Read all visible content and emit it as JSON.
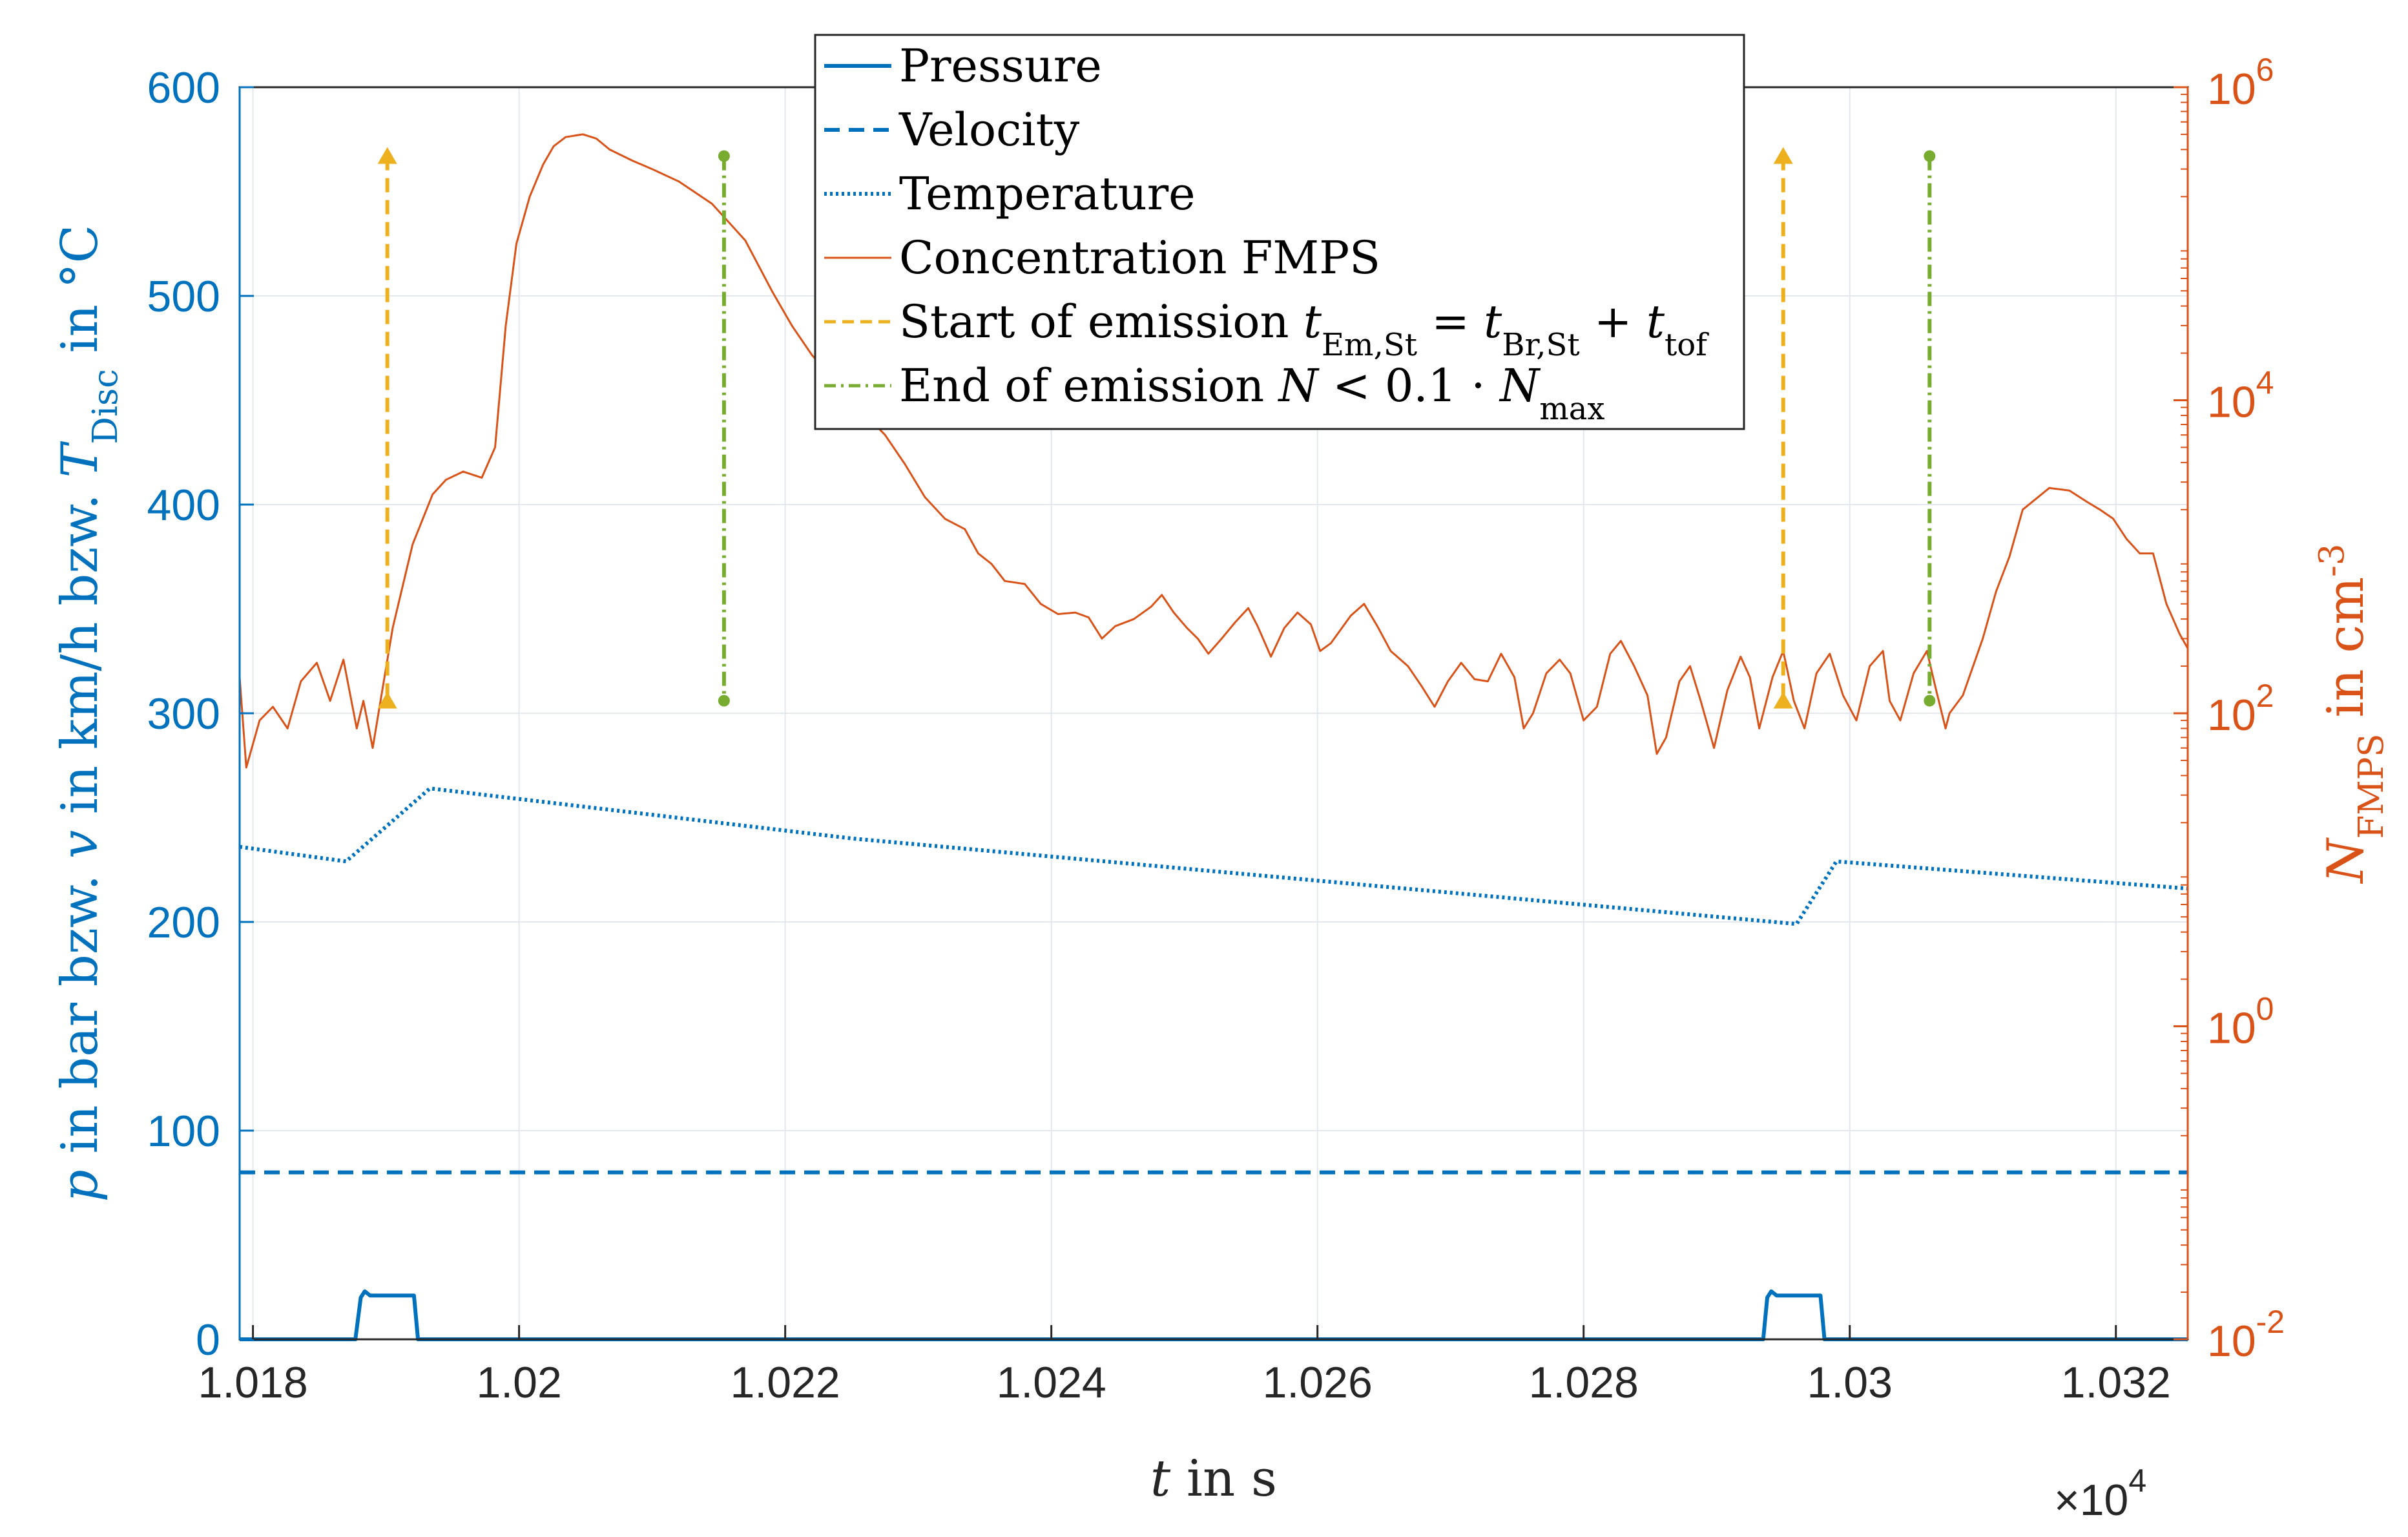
{
  "colors": {
    "left_axis": "#0072BD",
    "right_axis": "#D95319",
    "start_marker": "#EDB120",
    "end_marker": "#77AC30",
    "grid": "#E2E8EE",
    "text": "#262626"
  },
  "chart_data": {
    "type": "line",
    "x_scale_label": "×10",
    "x_scale_exponent": "4",
    "xlim": [
      1.0179,
      1.03254
    ],
    "x_ticks": [
      {
        "value": 1.018,
        "label": "1.018"
      },
      {
        "value": 1.02,
        "label": "1.02"
      },
      {
        "value": 1.022,
        "label": "1.022"
      },
      {
        "value": 1.024,
        "label": "1.024"
      },
      {
        "value": 1.026,
        "label": "1.026"
      },
      {
        "value": 1.028,
        "label": "1.028"
      },
      {
        "value": 1.03,
        "label": "1.03"
      },
      {
        "value": 1.032,
        "label": "1.032"
      }
    ],
    "xlabel": {
      "var": "t",
      "rest": " in s"
    },
    "left_axis": {
      "ylim": [
        0,
        600
      ],
      "ticks": [
        0,
        100,
        200,
        300,
        400,
        500,
        600
      ],
      "label_parts": [
        {
          "t": "p",
          "style": "italic"
        },
        {
          "t": " in bar bzw. "
        },
        {
          "t": "v",
          "style": "italic"
        },
        {
          "t": " in km/h bzw. "
        },
        {
          "t": "T",
          "style": "italic"
        },
        {
          "t": "Disc",
          "sub": true
        },
        {
          "t": " in °C"
        }
      ]
    },
    "right_axis": {
      "scale": "log",
      "ylim_exponent": [
        -2,
        6
      ],
      "ticks": [
        {
          "base": "10",
          "exp": "-2",
          "value_exp": -2
        },
        {
          "base": "10",
          "exp": "0",
          "value_exp": 0
        },
        {
          "base": "10",
          "exp": "2",
          "value_exp": 2
        },
        {
          "base": "10",
          "exp": "4",
          "value_exp": 4
        },
        {
          "base": "10",
          "exp": "6",
          "value_exp": 6
        }
      ],
      "label_parts": [
        {
          "t": "N",
          "style": "italic"
        },
        {
          "t": "FMPS",
          "sub": true
        },
        {
          "t": " in cm"
        },
        {
          "t": "-3",
          "sup": true
        }
      ]
    },
    "legend": [
      {
        "key": "pressure",
        "parts": [
          {
            "t": "Pressure"
          }
        ]
      },
      {
        "key": "velocity",
        "parts": [
          {
            "t": "Velocity"
          }
        ]
      },
      {
        "key": "temperature",
        "parts": [
          {
            "t": "Temperature"
          }
        ]
      },
      {
        "key": "concentration",
        "parts": [
          {
            "t": "Concentration FMPS"
          }
        ]
      },
      {
        "key": "start",
        "parts": [
          {
            "t": "Start of emission "
          },
          {
            "t": "t",
            "style": "italic"
          },
          {
            "t": "Em,St",
            "sub": true
          },
          {
            "t": " = "
          },
          {
            "t": "t",
            "style": "italic"
          },
          {
            "t": "Br,St",
            "sub": true
          },
          {
            "t": " + "
          },
          {
            "t": "t",
            "style": "italic"
          },
          {
            "t": "tof",
            "sub": true
          }
        ]
      },
      {
        "key": "end",
        "parts": [
          {
            "t": "End of emission "
          },
          {
            "t": "N",
            "style": "italic"
          },
          {
            "t": " < 0.1 · "
          },
          {
            "t": "N",
            "style": "italic"
          },
          {
            "t": "max",
            "sub": true
          }
        ]
      }
    ],
    "series": [
      {
        "name": "Pressure",
        "axis": "left",
        "style": "solid",
        "points": [
          [
            1.0179,
            0
          ],
          [
            1.01877,
            0
          ],
          [
            1.01881,
            20
          ],
          [
            1.01884,
            23
          ],
          [
            1.01888,
            21
          ],
          [
            1.01921,
            21
          ],
          [
            1.01924,
            0
          ],
          [
            1.02935,
            0
          ],
          [
            1.02938,
            20
          ],
          [
            1.02941,
            23
          ],
          [
            1.02945,
            21
          ],
          [
            1.02978,
            21
          ],
          [
            1.02981,
            0
          ],
          [
            1.03254,
            0
          ]
        ]
      },
      {
        "name": "Velocity",
        "axis": "left",
        "style": "dashed",
        "points": [
          [
            1.0179,
            80
          ],
          [
            1.032,
            80
          ],
          [
            1.03254,
            80
          ]
        ]
      },
      {
        "name": "Temperature",
        "axis": "left",
        "style": "dotted",
        "points": [
          [
            1.0179,
            236
          ],
          [
            1.0187,
            229
          ],
          [
            1.01933,
            264
          ],
          [
            1.0225,
            240
          ],
          [
            1.0296,
            199
          ],
          [
            1.0299,
            229
          ],
          [
            1.03254,
            216
          ]
        ]
      },
      {
        "name": "Concentration FMPS",
        "axis": "right",
        "scale": "log",
        "points": [
          [
            1.0179,
            170
          ],
          [
            1.01795,
            45
          ],
          [
            1.01805,
            90
          ],
          [
            1.01815,
            110
          ],
          [
            1.01826,
            80
          ],
          [
            1.01836,
            160
          ],
          [
            1.01848,
            210
          ],
          [
            1.01858,
            120
          ],
          [
            1.01868,
            220
          ],
          [
            1.01878,
            80
          ],
          [
            1.01883,
            120
          ],
          [
            1.0189,
            60
          ],
          [
            1.01905,
            350
          ],
          [
            1.0192,
            1200
          ],
          [
            1.01935,
            2500
          ],
          [
            1.01945,
            3100
          ],
          [
            1.01958,
            3500
          ],
          [
            1.01972,
            3200
          ],
          [
            1.01982,
            5000
          ],
          [
            1.0199,
            30000
          ],
          [
            1.01998,
            100000
          ],
          [
            1.02008,
            200000
          ],
          [
            1.02018,
            320000
          ],
          [
            1.02026,
            420000
          ],
          [
            1.02035,
            480000
          ],
          [
            1.02048,
            500000
          ],
          [
            1.02058,
            470000
          ],
          [
            1.02068,
            400000
          ],
          [
            1.02085,
            340000
          ],
          [
            1.021,
            300000
          ],
          [
            1.0212,
            250000
          ],
          [
            1.02145,
            180000
          ],
          [
            1.0217,
            105000
          ],
          [
            1.0219,
            50000
          ],
          [
            1.02205,
            30000
          ],
          [
            1.0222,
            19500
          ],
          [
            1.02235,
            14000
          ],
          [
            1.02255,
            9000
          ],
          [
            1.02275,
            6000
          ],
          [
            1.0229,
            3900
          ],
          [
            1.02305,
            2400
          ],
          [
            1.0232,
            1750
          ],
          [
            1.02335,
            1500
          ],
          [
            1.02345,
            1050
          ],
          [
            1.02355,
            900
          ],
          [
            1.02365,
            700
          ],
          [
            1.0238,
            670
          ],
          [
            1.02392,
            500
          ],
          [
            1.02405,
            430
          ],
          [
            1.02418,
            440
          ],
          [
            1.02428,
            410
          ],
          [
            1.02438,
            300
          ],
          [
            1.02448,
            360
          ],
          [
            1.02462,
            400
          ],
          [
            1.02475,
            480
          ],
          [
            1.02483,
            570
          ],
          [
            1.02492,
            440
          ],
          [
            1.02502,
            350
          ],
          [
            1.0251,
            300
          ],
          [
            1.02518,
            240
          ],
          [
            1.02528,
            300
          ],
          [
            1.02538,
            380
          ],
          [
            1.02548,
            470
          ],
          [
            1.02555,
            360
          ],
          [
            1.02565,
            230
          ],
          [
            1.02575,
            350
          ],
          [
            1.02585,
            440
          ],
          [
            1.02595,
            370
          ],
          [
            1.02602,
            250
          ],
          [
            1.0261,
            280
          ],
          [
            1.02625,
            420
          ],
          [
            1.02635,
            500
          ],
          [
            1.02645,
            360
          ],
          [
            1.02655,
            250
          ],
          [
            1.02668,
            200
          ],
          [
            1.02678,
            150
          ],
          [
            1.02688,
            110
          ],
          [
            1.02698,
            160
          ],
          [
            1.02708,
            210
          ],
          [
            1.02718,
            165
          ],
          [
            1.02728,
            160
          ],
          [
            1.02738,
            240
          ],
          [
            1.02748,
            170
          ],
          [
            1.02755,
            80
          ],
          [
            1.02762,
            100
          ],
          [
            1.02772,
            180
          ],
          [
            1.02782,
            220
          ],
          [
            1.0279,
            180
          ],
          [
            1.028,
            90
          ],
          [
            1.0281,
            110
          ],
          [
            1.0282,
            240
          ],
          [
            1.02828,
            290
          ],
          [
            1.02838,
            200
          ],
          [
            1.02848,
            130
          ],
          [
            1.02855,
            55
          ],
          [
            1.02862,
            70
          ],
          [
            1.02872,
            160
          ],
          [
            1.0288,
            200
          ],
          [
            1.02888,
            120
          ],
          [
            1.02898,
            60
          ],
          [
            1.02908,
            140
          ],
          [
            1.02918,
            230
          ],
          [
            1.02925,
            170
          ],
          [
            1.02932,
            80
          ],
          [
            1.02942,
            170
          ],
          [
            1.0295,
            250
          ],
          [
            1.02958,
            120
          ],
          [
            1.02966,
            80
          ],
          [
            1.02975,
            180
          ],
          [
            1.02985,
            240
          ],
          [
            1.02995,
            130
          ],
          [
            1.03005,
            90
          ],
          [
            1.03015,
            200
          ],
          [
            1.03025,
            250
          ],
          [
            1.0303,
            120
          ],
          [
            1.03038,
            90
          ],
          [
            1.03048,
            180
          ],
          [
            1.03058,
            250
          ],
          [
            1.03065,
            140
          ],
          [
            1.03072,
            80
          ],
          [
            1.03075,
            100
          ],
          [
            1.03085,
            130
          ],
          [
            1.031,
            300
          ],
          [
            1.0311,
            600
          ],
          [
            1.0312,
            1000
          ],
          [
            1.0313,
            2000
          ],
          [
            1.0315,
            2750
          ],
          [
            1.03165,
            2650
          ],
          [
            1.03178,
            2250
          ],
          [
            1.03188,
            2000
          ],
          [
            1.03198,
            1750
          ],
          [
            1.03208,
            1300
          ],
          [
            1.03218,
            1050
          ],
          [
            1.03228,
            1050
          ],
          [
            1.03238,
            500
          ],
          [
            1.03248,
            320
          ],
          [
            1.03254,
            260
          ]
        ]
      }
    ],
    "markers": [
      {
        "kind": "start",
        "x": 1.01901,
        "y_bottom": 306,
        "y_top": 567
      },
      {
        "kind": "end",
        "x": 1.02154,
        "y_bottom": 306,
        "y_top": 567
      },
      {
        "kind": "start",
        "x": 1.0295,
        "y_bottom": 306,
        "y_top": 567
      },
      {
        "kind": "end",
        "x": 1.0306,
        "y_bottom": 306,
        "y_top": 567
      }
    ]
  }
}
